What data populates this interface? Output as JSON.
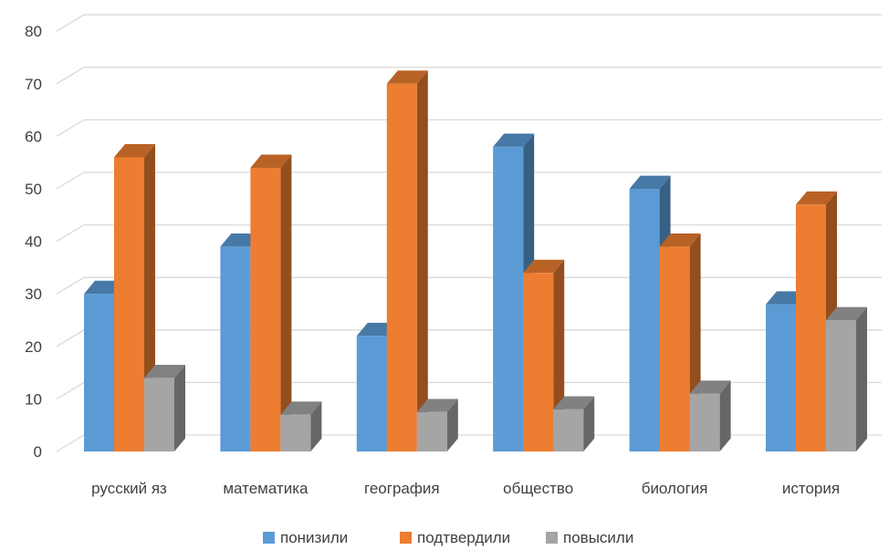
{
  "chart_data": {
    "type": "bar",
    "title": "",
    "xlabel": "",
    "ylabel": "",
    "ylim": [
      0,
      80
    ],
    "yticks": [
      0,
      10,
      20,
      30,
      40,
      50,
      60,
      70,
      80
    ],
    "ytick_labels": [
      "0",
      "10",
      "20",
      "30",
      "40",
      "50",
      "60",
      "70",
      "80"
    ],
    "grid": true,
    "legend_position": "bottom",
    "categories": [
      "русский яз",
      "математика",
      "география",
      "общество",
      "биология",
      "история"
    ],
    "series": [
      {
        "name": "понизили",
        "color": "#5B9BD5",
        "values": [
          30,
          39,
          22,
          58,
          50,
          28
        ]
      },
      {
        "name": "подтвердили",
        "color": "#ED7D31",
        "values": [
          56,
          54,
          70,
          34,
          39,
          47
        ]
      },
      {
        "name": "повысили",
        "color": "#A5A5A5",
        "values": [
          14,
          7,
          7.5,
          8,
          11,
          25
        ]
      }
    ]
  }
}
